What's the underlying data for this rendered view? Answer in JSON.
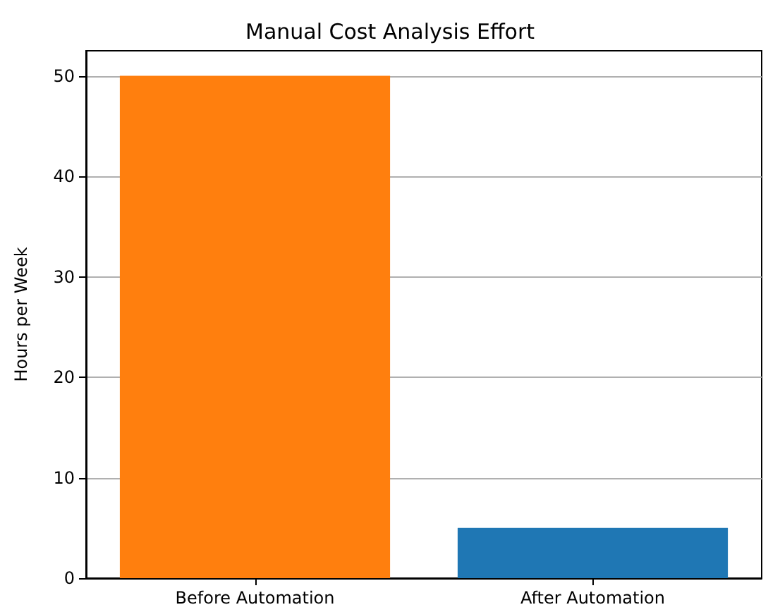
{
  "chart_data": {
    "type": "bar",
    "title": "Manual Cost Analysis Effort",
    "ylabel": "Hours per Week",
    "categories": [
      "Before Automation",
      "After Automation"
    ],
    "values": [
      50,
      5
    ],
    "colors": [
      "#ff7f0e",
      "#1f77b4"
    ],
    "ylim": [
      0,
      52.5
    ],
    "yticks": [
      0,
      10,
      20,
      30,
      40,
      50
    ],
    "grid": "y"
  }
}
